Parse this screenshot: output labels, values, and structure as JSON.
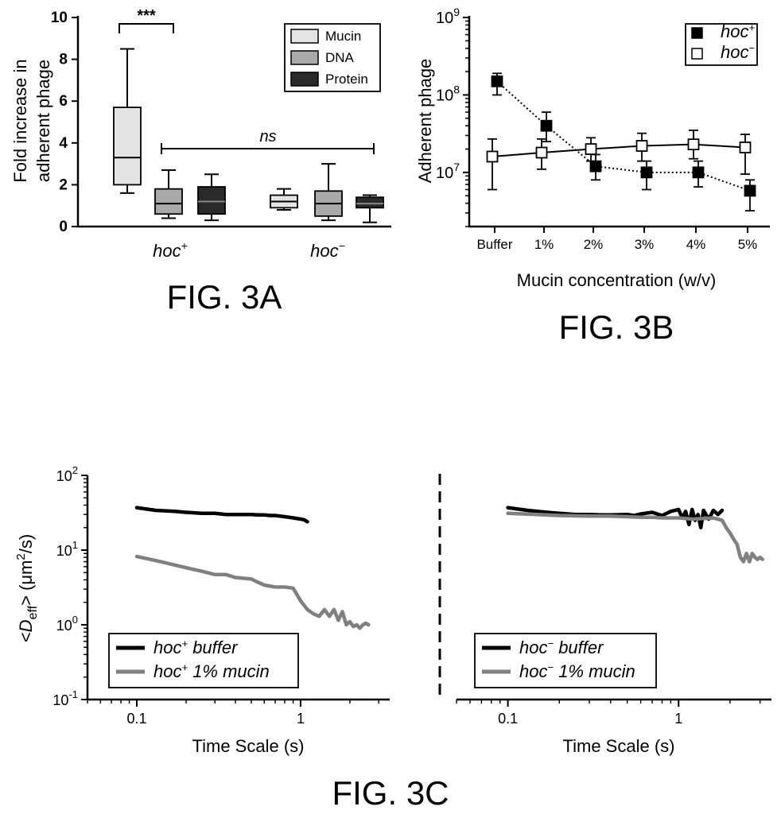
{
  "chart_data": [
    {
      "id": "A",
      "type": "box",
      "figure_label": "FIG. 3A",
      "ylabel_line1": "Fold increase in",
      "ylabel_line2": "adherent phage",
      "ylim": [
        0,
        10
      ],
      "yticks": [
        "0",
        "2",
        "4",
        "6",
        "8",
        "10"
      ],
      "groups": [
        {
          "name": "hoc",
          "sup": "+"
        },
        {
          "name": "hoc",
          "sup": "−"
        }
      ],
      "legend": [
        {
          "label": "Mucin",
          "color": "#e4e4e4"
        },
        {
          "label": "DNA",
          "color": "#a9a9a9"
        },
        {
          "label": "Protein",
          "color": "#2a2a2a"
        }
      ],
      "legend_position": "top-right",
      "boxes": [
        {
          "group": 0,
          "series": "Mucin",
          "min": 1.6,
          "q1": 2.0,
          "median": 3.3,
          "q3": 5.7,
          "max": 8.5
        },
        {
          "group": 0,
          "series": "DNA",
          "min": 0.4,
          "q1": 0.6,
          "median": 1.1,
          "q3": 1.8,
          "max": 2.7
        },
        {
          "group": 0,
          "series": "Protein",
          "min": 0.3,
          "q1": 0.6,
          "median": 1.2,
          "q3": 1.9,
          "max": 2.5
        },
        {
          "group": 1,
          "series": "Mucin",
          "min": 0.8,
          "q1": 0.9,
          "median": 1.2,
          "q3": 1.5,
          "max": 1.8
        },
        {
          "group": 1,
          "series": "DNA",
          "min": 0.3,
          "q1": 0.5,
          "median": 1.1,
          "q3": 1.7,
          "max": 3.0
        },
        {
          "group": 1,
          "series": "Protein",
          "min": 0.2,
          "q1": 0.9,
          "median": 1.1,
          "q3": 1.4,
          "max": 1.5
        }
      ],
      "annotations": {
        "significance": "***",
        "ns": "ns"
      }
    },
    {
      "id": "B",
      "type": "line",
      "figure_label": "FIG. 3B",
      "ylabel": "Adherent phage",
      "xlabel": "Mucin concentration (w/v)",
      "yscale": "log",
      "ylim": [
        2000000,
        1000000000
      ],
      "yticks": [
        {
          "base": "10",
          "exp": "7",
          "value": 10000000
        },
        {
          "base": "10",
          "exp": "8",
          "value": 100000000
        },
        {
          "base": "10",
          "exp": "9",
          "value": 1000000000
        }
      ],
      "categories": [
        "Buffer",
        "1%",
        "2%",
        "3%",
        "4%",
        "5%"
      ],
      "legend_position": "top-right",
      "series": [
        {
          "name": "hoc",
          "sup": "+",
          "marker": "filled-square",
          "line": "dotted",
          "values": [
            150000000,
            40000000,
            12000000,
            10000000,
            10000000,
            5800000
          ],
          "err_low": [
            100000000,
            25000000,
            8000000,
            6000000,
            6500000,
            3200000
          ],
          "err_high": [
            190000000,
            60000000,
            17000000,
            14000000,
            14000000,
            8000000
          ]
        },
        {
          "name": "hoc",
          "sup": "−",
          "marker": "open-square",
          "line": "solid",
          "values": [
            16000000,
            18000000,
            20000000,
            22000000,
            23000000,
            21000000
          ],
          "err_low": [
            6000000,
            11000000,
            14000000,
            14000000,
            15000000,
            9500000
          ],
          "err_high": [
            27000000,
            27000000,
            28000000,
            32000000,
            35000000,
            31000000
          ]
        }
      ]
    },
    {
      "id": "C",
      "type": "line",
      "figure_label": "FIG. 3C",
      "ylabel_pre": "<",
      "ylabel_D": "D",
      "ylabel_sub": "eff",
      "ylabel_mid": "> (μm",
      "ylabel_sup": "2",
      "ylabel_post": "/s)",
      "xlabel": "Time Scale (s)",
      "xscale": "log",
      "yscale": "log",
      "xlim": [
        0.05,
        3.5
      ],
      "ylim": [
        0.1,
        100
      ],
      "xticks": [
        {
          "label": "0.1",
          "value": 0.1
        },
        {
          "label": "1",
          "value": 1
        }
      ],
      "yticks": [
        {
          "base": "10",
          "exp": "-1",
          "value": 0.1
        },
        {
          "base": "10",
          "exp": "0",
          "value": 1
        },
        {
          "base": "10",
          "exp": "1",
          "value": 10
        },
        {
          "base": "10",
          "exp": "2",
          "value": 100
        }
      ],
      "legend_position": "bottom-left",
      "panels": [
        {
          "series": [
            {
              "name_pre": "hoc",
              "sup": "+",
              "name_post": " buffer",
              "color": "#000000",
              "x": [
                0.1,
                0.13,
                0.17,
                0.2,
                0.25,
                0.3,
                0.35,
                0.4,
                0.5,
                0.55,
                0.6,
                0.65,
                0.7,
                0.8,
                0.9,
                1.0,
                1.05,
                1.1
              ],
              "y": [
                37,
                34,
                33,
                32,
                31,
                31,
                30,
                30,
                30,
                29.5,
                29.5,
                29,
                29,
                28,
                27,
                26,
                25.5,
                24
              ]
            },
            {
              "name_pre": "hoc",
              "sup": "+",
              "name_post": " 1% mucin",
              "color": "#808080",
              "x": [
                0.1,
                0.14,
                0.2,
                0.25,
                0.3,
                0.35,
                0.4,
                0.5,
                0.55,
                0.6,
                0.7,
                0.8,
                0.9,
                1.0,
                1.1,
                1.2,
                1.3,
                1.4,
                1.5,
                1.6,
                1.7,
                1.8,
                1.9,
                2.0,
                2.1,
                2.2,
                2.3,
                2.4,
                2.5,
                2.6
              ],
              "y": [
                8.2,
                7,
                5.8,
                5.2,
                4.7,
                4.7,
                4.3,
                4.1,
                3.7,
                3.4,
                3.2,
                3.2,
                3.1,
                2.1,
                1.6,
                1.4,
                1.3,
                1.6,
                1.3,
                1.6,
                1.15,
                1.5,
                1.0,
                1.1,
                0.95,
                1.0,
                0.9,
                1.0,
                1.05,
                1.0
              ]
            }
          ]
        },
        {
          "series": [
            {
              "name_pre": "hoc",
              "sup": "−",
              "name_post": " buffer",
              "color": "#000000",
              "x": [
                0.1,
                0.13,
                0.17,
                0.2,
                0.25,
                0.3,
                0.35,
                0.4,
                0.5,
                0.55,
                0.6,
                0.7,
                0.8,
                0.9,
                1.0,
                1.05,
                1.1,
                1.15,
                1.2,
                1.25,
                1.3,
                1.35,
                1.4,
                1.5,
                1.6,
                1.7,
                1.8
              ],
              "y": [
                37,
                34,
                32,
                31,
                30,
                30,
                29.5,
                29.5,
                30,
                29,
                30.5,
                32,
                29,
                33,
                35,
                27,
                33,
                22,
                35,
                25,
                30,
                20,
                34,
                26,
                34,
                30,
                34
              ]
            },
            {
              "name_pre": "hoc",
              "sup": "−",
              "name_post": " 1% mucin",
              "color": "#808080",
              "x": [
                0.1,
                0.15,
                0.2,
                0.3,
                0.4,
                0.5,
                0.6,
                0.7,
                0.8,
                0.9,
                1.0,
                1.2,
                1.4,
                1.6,
                1.8,
                1.9,
                2.0,
                2.1,
                2.2,
                2.3,
                2.4,
                2.5,
                2.6,
                2.7,
                2.8,
                2.9,
                3.0,
                3.1
              ],
              "y": [
                31,
                30,
                29,
                28.5,
                28.5,
                28,
                27.5,
                27.5,
                27,
                27,
                27,
                26,
                26.5,
                27,
                25,
                20,
                17,
                14,
                12,
                8,
                7,
                9,
                7,
                9,
                8,
                7.5,
                8,
                7.5
              ]
            }
          ]
        }
      ]
    }
  ]
}
